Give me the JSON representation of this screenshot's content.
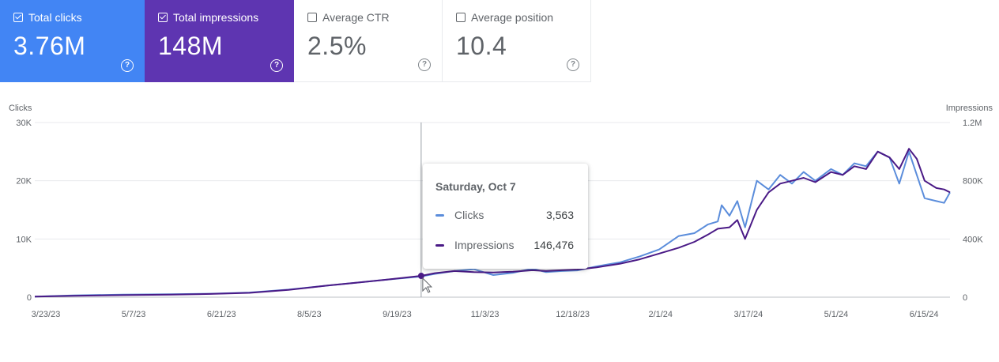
{
  "cards": [
    {
      "label": "Total clicks",
      "value": "3.76M",
      "checked": true,
      "color": "#4285f4"
    },
    {
      "label": "Total impressions",
      "value": "148M",
      "checked": true,
      "color": "#5e35b1"
    },
    {
      "label": "Average CTR",
      "value": "2.5%",
      "checked": false,
      "color": "#ffffff"
    },
    {
      "label": "Average position",
      "value": "10.4",
      "checked": false,
      "color": "#ffffff"
    }
  ],
  "help_glyph": "?",
  "chart_data": {
    "type": "line",
    "left_axis_label": "Clicks",
    "right_axis_label": "Impressions",
    "left_ticks": [
      "0",
      "10K",
      "20K",
      "30K"
    ],
    "left_tick_values": [
      0,
      10000,
      20000,
      30000
    ],
    "right_ticks": [
      "0",
      "400K",
      "800K",
      "1.2M"
    ],
    "right_tick_values": [
      0,
      400000,
      800000,
      1200000
    ],
    "x_ticks": [
      "3/23/23",
      "5/7/23",
      "6/21/23",
      "8/5/23",
      "9/19/23",
      "11/3/23",
      "12/18/23",
      "2/1/24",
      "3/17/24",
      "5/1/24",
      "6/15/24"
    ],
    "x_tick_days": [
      0,
      45,
      90,
      135,
      180,
      225,
      270,
      315,
      360,
      405,
      450
    ],
    "x_last_day": 469,
    "grid": true,
    "series": [
      {
        "name": "Clicks",
        "axis": "left",
        "color": "#5b8ddb",
        "points": [
          [
            0,
            100
          ],
          [
            20,
            300
          ],
          [
            45,
            450
          ],
          [
            70,
            500
          ],
          [
            90,
            600
          ],
          [
            110,
            800
          ],
          [
            130,
            1300
          ],
          [
            150,
            2000
          ],
          [
            165,
            2500
          ],
          [
            180,
            3000
          ],
          [
            198,
            3563
          ],
          [
            205,
            4000
          ],
          [
            215,
            4500
          ],
          [
            225,
            4800
          ],
          [
            235,
            3800
          ],
          [
            245,
            4200
          ],
          [
            255,
            4900
          ],
          [
            262,
            4300
          ],
          [
            270,
            4500
          ],
          [
            278,
            4600
          ],
          [
            288,
            5300
          ],
          [
            300,
            6000
          ],
          [
            310,
            7000
          ],
          [
            320,
            8200
          ],
          [
            330,
            10500
          ],
          [
            338,
            11000
          ],
          [
            345,
            12500
          ],
          [
            350,
            13000
          ],
          [
            352,
            15800
          ],
          [
            356,
            14000
          ],
          [
            360,
            16500
          ],
          [
            364,
            12000
          ],
          [
            370,
            20000
          ],
          [
            376,
            18500
          ],
          [
            382,
            21000
          ],
          [
            388,
            19500
          ],
          [
            394,
            21500
          ],
          [
            400,
            20000
          ],
          [
            408,
            22000
          ],
          [
            414,
            21000
          ],
          [
            420,
            23000
          ],
          [
            426,
            22500
          ],
          [
            432,
            25000
          ],
          [
            438,
            24000
          ],
          [
            443,
            19500
          ],
          [
            448,
            25000
          ],
          [
            452,
            21000
          ],
          [
            456,
            17000
          ],
          [
            462,
            16500
          ],
          [
            466,
            16200
          ],
          [
            469,
            18000
          ]
        ]
      },
      {
        "name": "Impressions",
        "axis": "right",
        "color": "#4a1a86",
        "points": [
          [
            0,
            4000
          ],
          [
            20,
            9000
          ],
          [
            45,
            14000
          ],
          [
            70,
            18000
          ],
          [
            90,
            22000
          ],
          [
            110,
            30000
          ],
          [
            130,
            50000
          ],
          [
            150,
            80000
          ],
          [
            165,
            100000
          ],
          [
            180,
            120000
          ],
          [
            198,
            146476
          ],
          [
            205,
            165000
          ],
          [
            215,
            180000
          ],
          [
            225,
            172000
          ],
          [
            235,
            170000
          ],
          [
            245,
            175000
          ],
          [
            255,
            185000
          ],
          [
            262,
            180000
          ],
          [
            270,
            185000
          ],
          [
            278,
            190000
          ],
          [
            288,
            205000
          ],
          [
            300,
            230000
          ],
          [
            310,
            260000
          ],
          [
            320,
            300000
          ],
          [
            330,
            340000
          ],
          [
            338,
            380000
          ],
          [
            345,
            430000
          ],
          [
            350,
            470000
          ],
          [
            356,
            480000
          ],
          [
            360,
            530000
          ],
          [
            364,
            400000
          ],
          [
            370,
            600000
          ],
          [
            376,
            720000
          ],
          [
            382,
            780000
          ],
          [
            388,
            800000
          ],
          [
            394,
            820000
          ],
          [
            400,
            790000
          ],
          [
            408,
            860000
          ],
          [
            414,
            840000
          ],
          [
            420,
            900000
          ],
          [
            426,
            880000
          ],
          [
            432,
            1000000
          ],
          [
            438,
            960000
          ],
          [
            443,
            880000
          ],
          [
            448,
            1020000
          ],
          [
            452,
            950000
          ],
          [
            456,
            800000
          ],
          [
            462,
            750000
          ],
          [
            466,
            740000
          ],
          [
            469,
            720000
          ]
        ]
      }
    ]
  },
  "tooltip": {
    "date": "Saturday, Oct 7",
    "rows": [
      {
        "label": "Clicks",
        "value": "3,563",
        "color": "#5b8ddb"
      },
      {
        "label": "Impressions",
        "value": "146,476",
        "color": "#4a1a86"
      }
    ],
    "day": 198
  }
}
